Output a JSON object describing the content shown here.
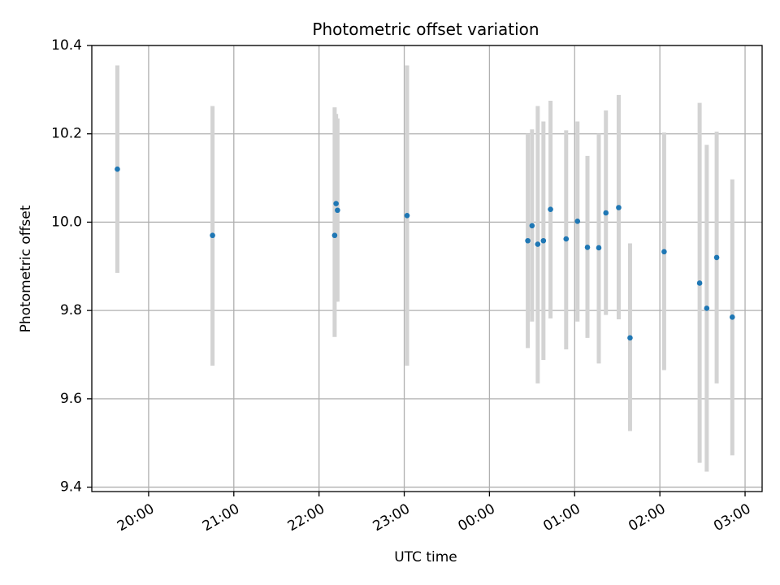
{
  "chart_data": {
    "type": "scatter",
    "title": "Photometric offset variation",
    "xlabel": "UTC time",
    "ylabel": "Photometric offset",
    "x_axis": {
      "kind": "time",
      "start": "19:20",
      "end": "03:12",
      "ticks": [
        "20:00",
        "21:00",
        "22:00",
        "23:00",
        "00:00",
        "01:00",
        "02:00",
        "03:00"
      ],
      "tick_label_rotation_deg": 30
    },
    "y_axis": {
      "ylim": [
        9.39,
        10.4
      ],
      "ticks": [
        "9.4",
        "9.6",
        "9.8",
        "10.0",
        "10.2",
        "10.4"
      ]
    },
    "grid": true,
    "colors": {
      "marker": "#1f77b4",
      "errorbar": "#d3d3d3",
      "grid": "#b0b0b0"
    },
    "points": [
      {
        "x": "19:38",
        "y": 10.12,
        "ylow": 9.885,
        "yhigh": 10.355
      },
      {
        "x": "20:45",
        "y": 9.97,
        "ylow": 9.675,
        "yhigh": 10.263
      },
      {
        "x": "22:11",
        "y": 9.97,
        "ylow": 9.74,
        "yhigh": 10.26
      },
      {
        "x": "22:12",
        "y": 10.042,
        "ylow": 9.82,
        "yhigh": 10.245
      },
      {
        "x": "22:13",
        "y": 10.027,
        "ylow": 9.82,
        "yhigh": 10.235
      },
      {
        "x": "23:02",
        "y": 10.015,
        "ylow": 9.675,
        "yhigh": 10.355
      },
      {
        "x": "00:27",
        "y": 9.958,
        "ylow": 9.715,
        "yhigh": 10.2
      },
      {
        "x": "00:30",
        "y": 9.992,
        "ylow": 9.775,
        "yhigh": 10.21
      },
      {
        "x": "00:34",
        "y": 9.95,
        "ylow": 9.635,
        "yhigh": 10.263
      },
      {
        "x": "00:38",
        "y": 9.958,
        "ylow": 9.688,
        "yhigh": 10.228
      },
      {
        "x": "00:43",
        "y": 10.029,
        "ylow": 9.782,
        "yhigh": 10.275
      },
      {
        "x": "00:54",
        "y": 9.962,
        "ylow": 9.712,
        "yhigh": 10.208
      },
      {
        "x": "01:02",
        "y": 10.002,
        "ylow": 9.775,
        "yhigh": 10.228
      },
      {
        "x": "01:09",
        "y": 9.943,
        "ylow": 9.738,
        "yhigh": 10.15
      },
      {
        "x": "01:17",
        "y": 9.942,
        "ylow": 9.68,
        "yhigh": 10.2
      },
      {
        "x": "01:22",
        "y": 10.021,
        "ylow": 9.79,
        "yhigh": 10.253
      },
      {
        "x": "01:31",
        "y": 10.033,
        "ylow": 9.78,
        "yhigh": 10.288
      },
      {
        "x": "01:39",
        "y": 9.738,
        "ylow": 9.527,
        "yhigh": 9.952
      },
      {
        "x": "02:03",
        "y": 9.933,
        "ylow": 9.665,
        "yhigh": 10.203
      },
      {
        "x": "02:28",
        "y": 9.862,
        "ylow": 9.455,
        "yhigh": 10.27
      },
      {
        "x": "02:33",
        "y": 9.805,
        "ylow": 9.435,
        "yhigh": 10.175
      },
      {
        "x": "02:40",
        "y": 9.92,
        "ylow": 9.635,
        "yhigh": 10.205
      },
      {
        "x": "02:51",
        "y": 9.785,
        "ylow": 9.472,
        "yhigh": 10.097
      }
    ]
  }
}
